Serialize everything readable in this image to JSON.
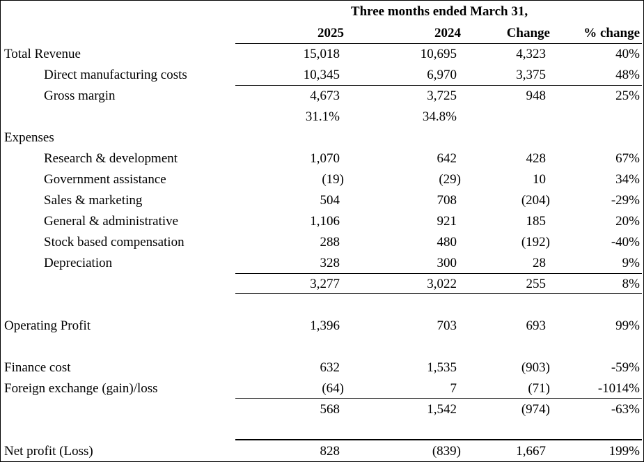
{
  "header": {
    "title": "Three months ended March 31,",
    "columns": [
      "2025",
      "2024",
      "Change",
      "% change"
    ]
  },
  "rows": [
    {
      "label": "Total Revenue",
      "indent": false,
      "values": [
        "15,018",
        "10,695",
        "4,323",
        "40%"
      ]
    },
    {
      "label": "Direct manufacturing costs",
      "indent": true,
      "values": [
        "10,345",
        "6,970",
        "3,375",
        "48%"
      ]
    },
    {
      "label": "Gross margin",
      "indent": true,
      "values": [
        "4,673",
        "3,725",
        "948",
        "25%"
      ]
    },
    {
      "label": "",
      "indent": false,
      "values": [
        "31.1%",
        "34.8%",
        "",
        ""
      ]
    },
    {
      "label": "Expenses",
      "indent": false,
      "values": [
        "",
        "",
        "",
        ""
      ]
    },
    {
      "label": "Research & development",
      "indent": true,
      "values": [
        "1,070",
        "642",
        "428",
        "67%"
      ]
    },
    {
      "label": "Government assistance",
      "indent": true,
      "values": [
        "(19)",
        "(29)",
        "10",
        "34%"
      ]
    },
    {
      "label": "Sales & marketing",
      "indent": true,
      "values": [
        "504",
        "708",
        "(204)",
        "-29%"
      ]
    },
    {
      "label": "General & administrative",
      "indent": true,
      "values": [
        "1,106",
        "921",
        "185",
        "20%"
      ]
    },
    {
      "label": "Stock based compensation",
      "indent": true,
      "values": [
        "288",
        "480",
        "(192)",
        "-40%"
      ]
    },
    {
      "label": "Depreciation",
      "indent": true,
      "values": [
        "328",
        "300",
        "28",
        "9%"
      ]
    },
    {
      "label": "",
      "indent": false,
      "values": [
        "3,277",
        "3,022",
        "255",
        "8%"
      ]
    },
    {
      "label": "",
      "indent": false,
      "values": [
        "",
        "",
        "",
        ""
      ]
    },
    {
      "label": "Operating Profit",
      "indent": false,
      "values": [
        "1,396",
        "703",
        "693",
        "99%"
      ]
    },
    {
      "label": "",
      "indent": false,
      "values": [
        "",
        "",
        "",
        ""
      ]
    },
    {
      "label": "Finance cost",
      "indent": false,
      "values": [
        "632",
        "1,535",
        "(903)",
        "-59%"
      ]
    },
    {
      "label": "Foreign exchange (gain)/loss",
      "indent": false,
      "values": [
        "(64)",
        "7",
        "(71)",
        "-1014%"
      ]
    },
    {
      "label": "",
      "indent": false,
      "values": [
        "568",
        "1,542",
        "(974)",
        "-63%"
      ]
    },
    {
      "label": "",
      "indent": false,
      "values": [
        "",
        "",
        "",
        ""
      ]
    },
    {
      "label": "Net profit (Loss)",
      "indent": false,
      "values": [
        "828",
        "(839)",
        "1,667",
        "199%"
      ]
    }
  ]
}
